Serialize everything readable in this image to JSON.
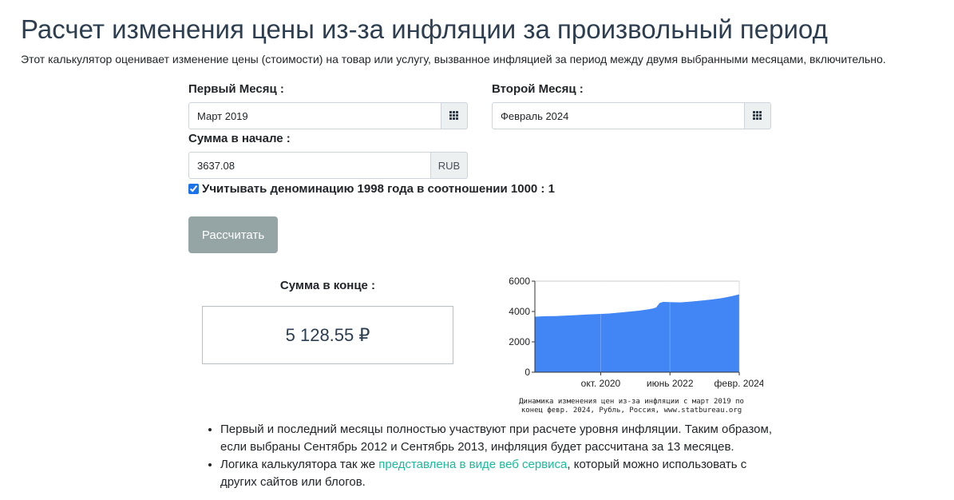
{
  "page": {
    "title": "Расчет изменения цены из-за инфляции за произвольный период",
    "description": "Этот калькулятор оценивает изменение цены (стоимости) на товар или услугу, вызванное инфляцией за период между двумя выбранными месяцами, включительно."
  },
  "form": {
    "first_month_label": "Первый Месяц :",
    "first_month_value": "Март 2019",
    "second_month_label": "Второй Месяц :",
    "second_month_value": "Февраль 2024",
    "amount_label": "Сумма в начале :",
    "amount_value": "3637.08",
    "currency": "RUB",
    "denomination_label": "Учитывать деноминацию 1998 года в соотношении 1000 : 1",
    "denomination_checked": true,
    "calculate_label": "Рассчитать"
  },
  "result": {
    "label": "Сумма в конце :",
    "value": "5 128.55 ₽"
  },
  "chart_caption_line1": "Динамика изменения цен из-за инфляции с март 2019 по",
  "chart_caption_line2": "конец февр. 2024, Рубль, Россия, www.statbureau.org",
  "chart_data": {
    "type": "area",
    "x": [
      "2019-03",
      "2019-06",
      "2019-09",
      "2019-12",
      "2020-03",
      "2020-06",
      "2020-09",
      "2020-12",
      "2021-03",
      "2021-06",
      "2021-09",
      "2021-12",
      "2022-01",
      "2022-02",
      "2022-03",
      "2022-04",
      "2022-06",
      "2022-09",
      "2022-12",
      "2023-03",
      "2023-06",
      "2023-09",
      "2023-12",
      "2024-02"
    ],
    "values": [
      3660,
      3690,
      3700,
      3730,
      3760,
      3800,
      3830,
      3860,
      3920,
      3990,
      4050,
      4150,
      4200,
      4260,
      4560,
      4630,
      4620,
      4600,
      4650,
      4720,
      4790,
      4880,
      5020,
      5128.55
    ],
    "y_ticks": [
      "0",
      "2000",
      "4000",
      "6000"
    ],
    "x_ticks": [
      "окт. 2020",
      "июнь 2022",
      "февр. 2024"
    ],
    "ylim": [
      0,
      6000
    ],
    "color": "#4285f4",
    "grid": true
  },
  "notes": {
    "item1": "Первый и последний месяцы полностью участвуют при расчете уровня инфляции. Таким образом, если выбраны Сентябрь 2012 и Сентябрь 2013, инфляция будет рассчитана за 13 месяцев.",
    "item2_before": "Логика калькулятора так же ",
    "item2_link": "представлена в виде веб сервиса",
    "item2_after": ", который можно использовать с других сайтов или блогов."
  }
}
